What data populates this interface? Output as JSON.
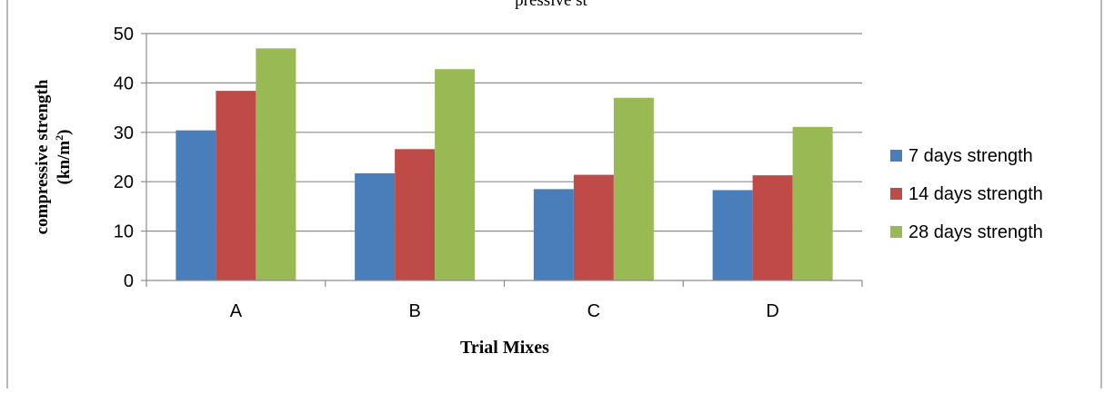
{
  "chart_data": {
    "type": "bar",
    "title": "",
    "partial_title_fragment": "pressive st",
    "xlabel": "Trial Mixes",
    "ylabel_line1": "compressive strength",
    "ylabel_line2_base": "(kn/m",
    "ylabel_line2_sup": "2",
    "ylabel_line2_end": ")",
    "categories": [
      "A",
      "B",
      "C",
      "D"
    ],
    "ylim": [
      0,
      50
    ],
    "yticks": [
      0,
      10,
      20,
      30,
      40,
      50
    ],
    "grid": true,
    "legend_position": "right",
    "series": [
      {
        "name": "7 days strength",
        "color": "#4a7ebb",
        "values": [
          30.4,
          21.7,
          18.5,
          18.3
        ]
      },
      {
        "name": "14 days strength",
        "color": "#be4b48",
        "values": [
          38.4,
          26.6,
          21.4,
          21.3
        ]
      },
      {
        "name": "28 days strength",
        "color": "#98b954",
        "values": [
          47.0,
          42.8,
          37.0,
          31.1
        ]
      }
    ]
  }
}
